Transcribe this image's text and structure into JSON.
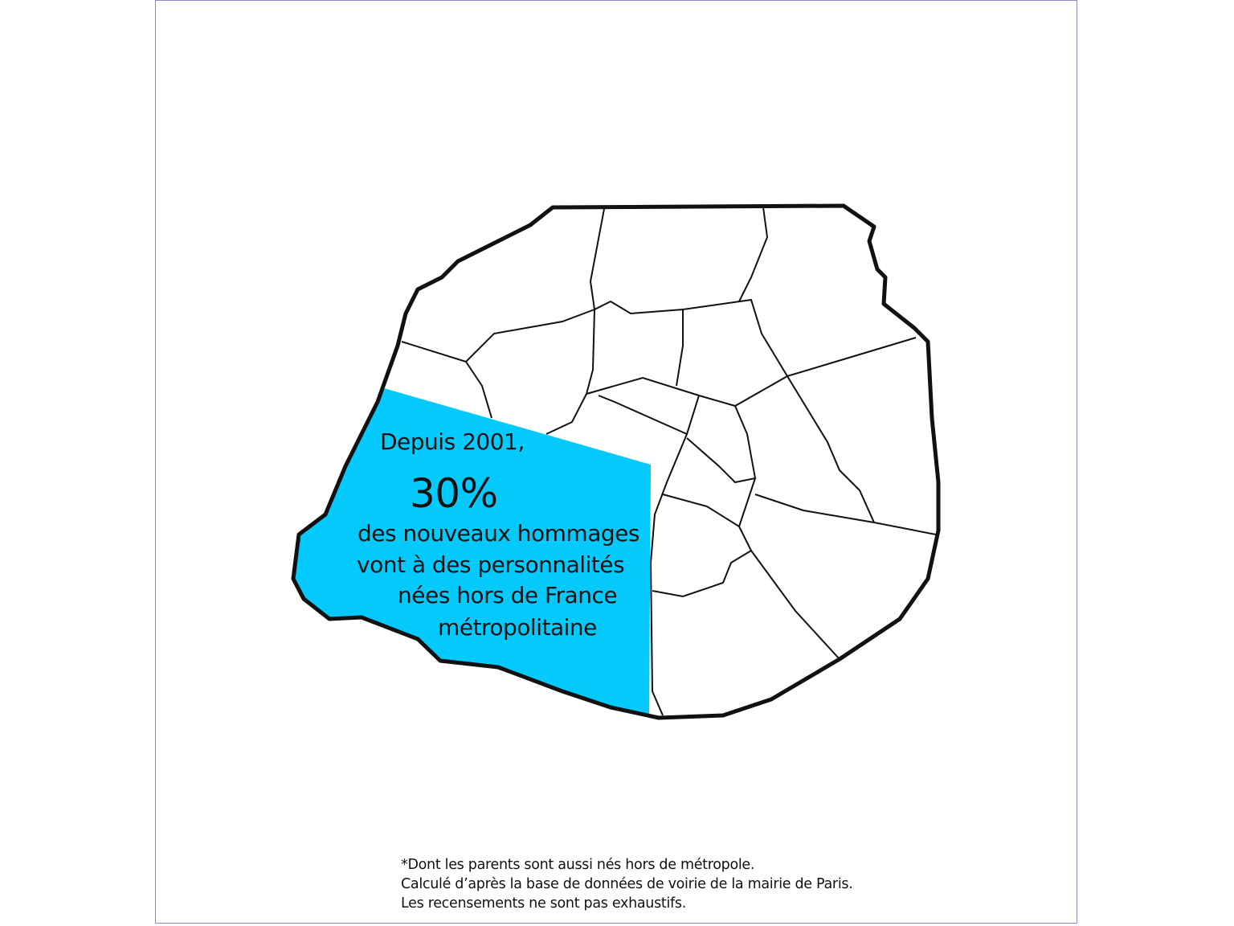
{
  "infographic": {
    "intro": "Depuis 2001,",
    "percent": "30%",
    "lines": [
      "des nouveaux hommages",
      "vont à des personnalités",
      "nées hors de France",
      "métropolitaine"
    ],
    "highlight_color": "#04c9fd",
    "map_subject": "Paris arrondissements outline"
  },
  "footnotes": [
    "*Dont les parents sont aussi nés hors de métropole.",
    "Calculé d’après la base de données de voirie de la mairie de Paris.",
    "Les recensements ne sont pas exhaustifs."
  ]
}
